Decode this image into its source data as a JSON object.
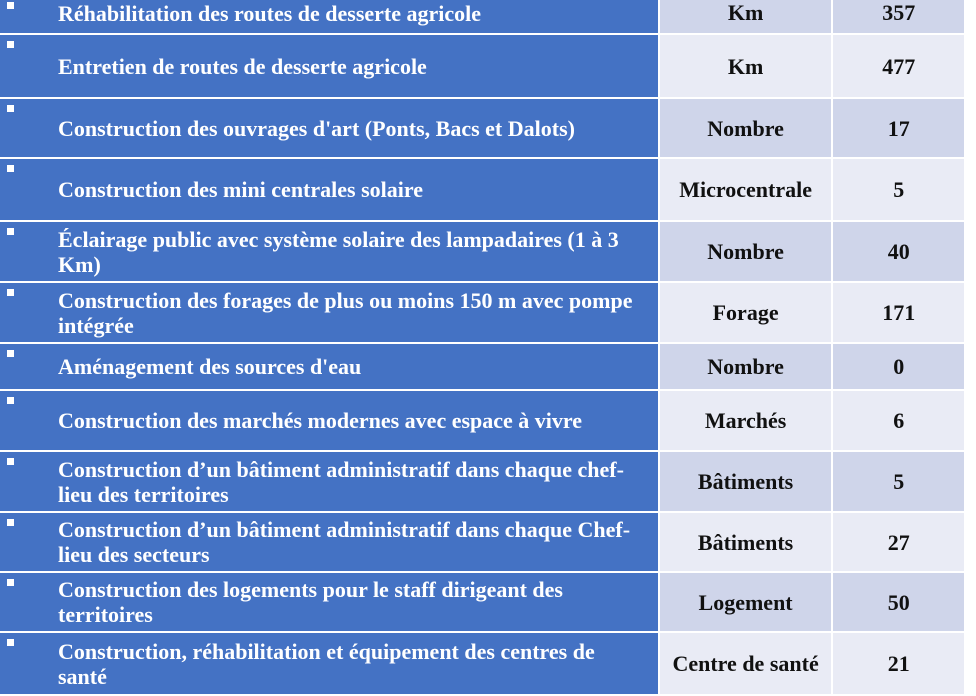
{
  "colors": {
    "header_blue": "#4472C4",
    "row_dark": "#CFD5EA",
    "row_light": "#E9EBF5"
  },
  "rows": [
    {
      "activity": "Réhabilitation des routes de desserte agricole",
      "unit": "Km",
      "quantity": "357"
    },
    {
      "activity": "Entretien de routes de desserte agricole",
      "unit": "Km",
      "quantity": "477"
    },
    {
      "activity": "Construction des ouvrages d'art (Ponts, Bacs et Dalots)",
      "unit": "Nombre",
      "quantity": "17"
    },
    {
      "activity": "Construction des mini centrales solaire",
      "unit": "Microcentrale",
      "quantity": "5"
    },
    {
      "activity": "Éclairage public avec système solaire des lampadaires (1 à 3 Km)",
      "unit": "Nombre",
      "quantity": "40"
    },
    {
      "activity": "Construction des forages de plus ou moins 150 m avec pompe intégrée",
      "unit": "Forage",
      "quantity": "171"
    },
    {
      "activity": "Aménagement des sources d'eau",
      "unit": "Nombre",
      "quantity": "0"
    },
    {
      "activity": "Construction des marchés modernes avec espace à vivre",
      "unit": "Marchés",
      "quantity": "6"
    },
    {
      "activity": "Construction d’un bâtiment administratif dans chaque chef-lieu des territoires",
      "unit": "Bâtiments",
      "quantity": "5"
    },
    {
      "activity": "Construction d’un bâtiment administratif dans chaque Chef-lieu des secteurs",
      "unit": "Bâtiments",
      "quantity": "27"
    },
    {
      "activity": "Construction des logements pour le staff dirigeant des territoires",
      "unit": "Logement",
      "quantity": "50"
    },
    {
      "activity": "Construction, réhabilitation et équipement des centres de santé",
      "unit": "Centre de santé",
      "quantity": "21"
    }
  ]
}
